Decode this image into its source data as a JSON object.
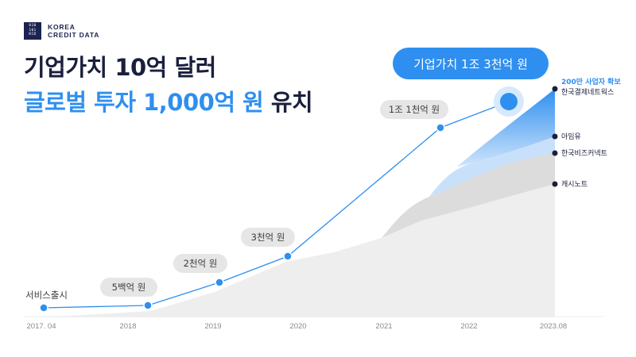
{
  "brand": {
    "mark_lines": [
      "010",
      "101",
      "KCD"
    ],
    "name_line1": "KOREA",
    "name_line2": "CREDIT DATA"
  },
  "headline": {
    "line1": "기업가치 10억 달러",
    "line2_accent": "글로벌 투자 1,000억 원",
    "line2_rest": " 유치"
  },
  "colors": {
    "accent": "#2e8ff0",
    "navy": "#1a1f3c",
    "pill_grey": "#e6e6e6",
    "area_grey": "#ececec",
    "band_grey": "#d6d6d6"
  },
  "chart_data": {
    "type": "line",
    "title": "",
    "xlabel": "",
    "ylabel": "",
    "x_ticks": [
      "2017. 04",
      "2018",
      "2019",
      "2020",
      "2021",
      "2022",
      "2023.08"
    ],
    "valuation_series": {
      "points": [
        {
          "x": "2017.04",
          "label": "서비스출시"
        },
        {
          "x": "2018.04",
          "label": "5백억 원"
        },
        {
          "x": "2019.03",
          "label": "2천억 원"
        },
        {
          "x": "2019.11",
          "label": "3천억 원"
        },
        {
          "x": "2021.09",
          "label": "1조 1천억 원"
        },
        {
          "x": "2022.06",
          "label": "기업가치 1조 3천억 원"
        }
      ]
    },
    "endpoint_labels": [
      {
        "highlight": "200만 사업자 확보",
        "name": "한국결제네트웍스"
      },
      {
        "name": "아임유"
      },
      {
        "name": "한국비즈커넥트"
      },
      {
        "name": "캐시노트"
      }
    ]
  }
}
